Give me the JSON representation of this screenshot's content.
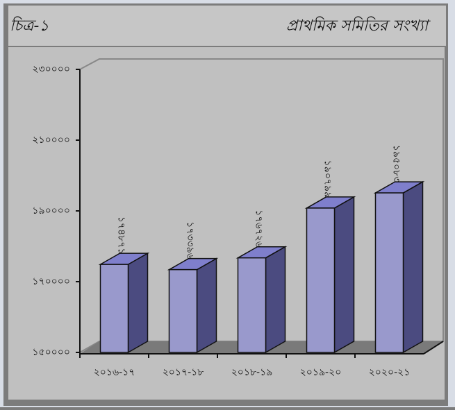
{
  "chart_data": {
    "type": "bar3d",
    "title": "প্রাথমিক সমিতির সংখ্যা",
    "figure_label": "চিত্র-১",
    "categories": [
      "২০১৬-১৭",
      "২০১৭-১৮",
      "২০১৮-১৯",
      "২০১৯-২০",
      "২০২০-২১"
    ],
    "values": [
      174871,
      173396,
      176726,
      190799,
      195083
    ],
    "value_labels": [
      "১৭৪৮৭১",
      "১৭৩৩৯৬",
      "১৭৬৭২৬",
      "১৯০৭৯৯",
      "১৯৫০৮৩"
    ],
    "color": "#9999cc",
    "ylim": [
      150000,
      230000
    ],
    "yticks": [
      {
        "value": 150000,
        "label": "১৫০০০০"
      },
      {
        "value": 170000,
        "label": "১৭০০০০"
      },
      {
        "value": 190000,
        "label": "১৯০০০০"
      },
      {
        "value": 210000,
        "label": "২১০০০০"
      },
      {
        "value": 230000,
        "label": "২৩০০০০"
      }
    ]
  }
}
